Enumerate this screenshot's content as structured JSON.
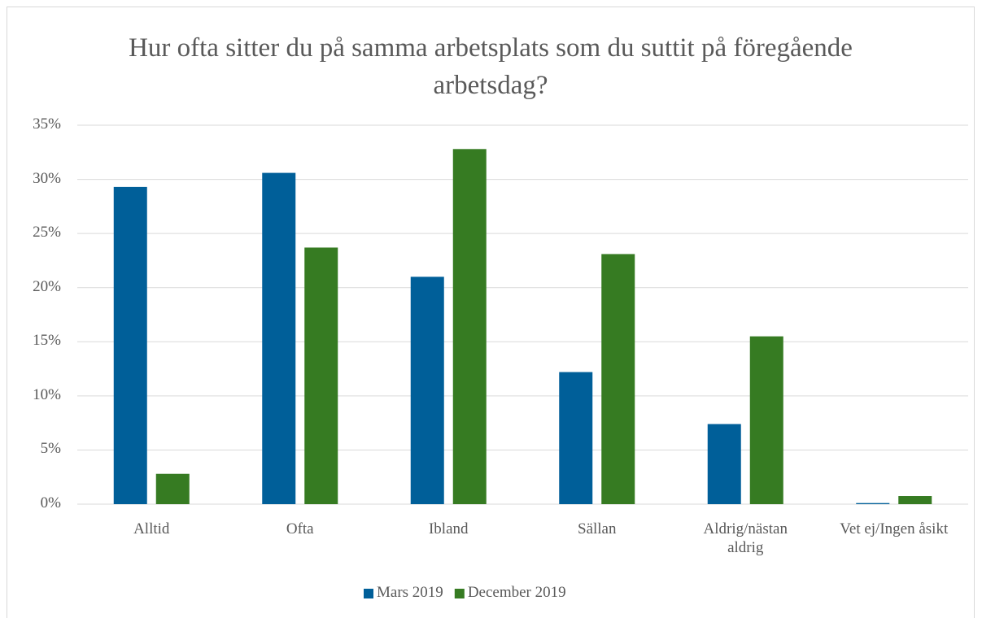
{
  "chart_data": {
    "type": "bar",
    "title": "Hur ofta sitter du på samma arbetsplats som du suttit på föregående arbetsdag?",
    "categories": [
      "Alltid",
      "Ofta",
      "Ibland",
      "Sällan",
      "Aldrig/nästan aldrig",
      "Vet ej/Ingen åsikt"
    ],
    "series": [
      {
        "name": "Mars 2019",
        "color": "#005f99",
        "values": [
          29.3,
          30.6,
          21.0,
          12.2,
          7.4,
          0.1
        ]
      },
      {
        "name": "December 2019",
        "color": "#367b22",
        "values": [
          2.8,
          23.7,
          32.8,
          23.1,
          15.5,
          0.75
        ]
      }
    ],
    "ylim": [
      0,
      35
    ],
    "yticks": [
      {
        "value": 0,
        "label": "0%"
      },
      {
        "value": 5,
        "label": "5%"
      },
      {
        "value": 10,
        "label": "10%"
      },
      {
        "value": 15,
        "label": "15%"
      },
      {
        "value": 20,
        "label": "20%"
      },
      {
        "value": 25,
        "label": "25%"
      },
      {
        "value": 30,
        "label": "30%"
      },
      {
        "value": 35,
        "label": "35%"
      }
    ],
    "grid": true,
    "legend": "bottom"
  }
}
